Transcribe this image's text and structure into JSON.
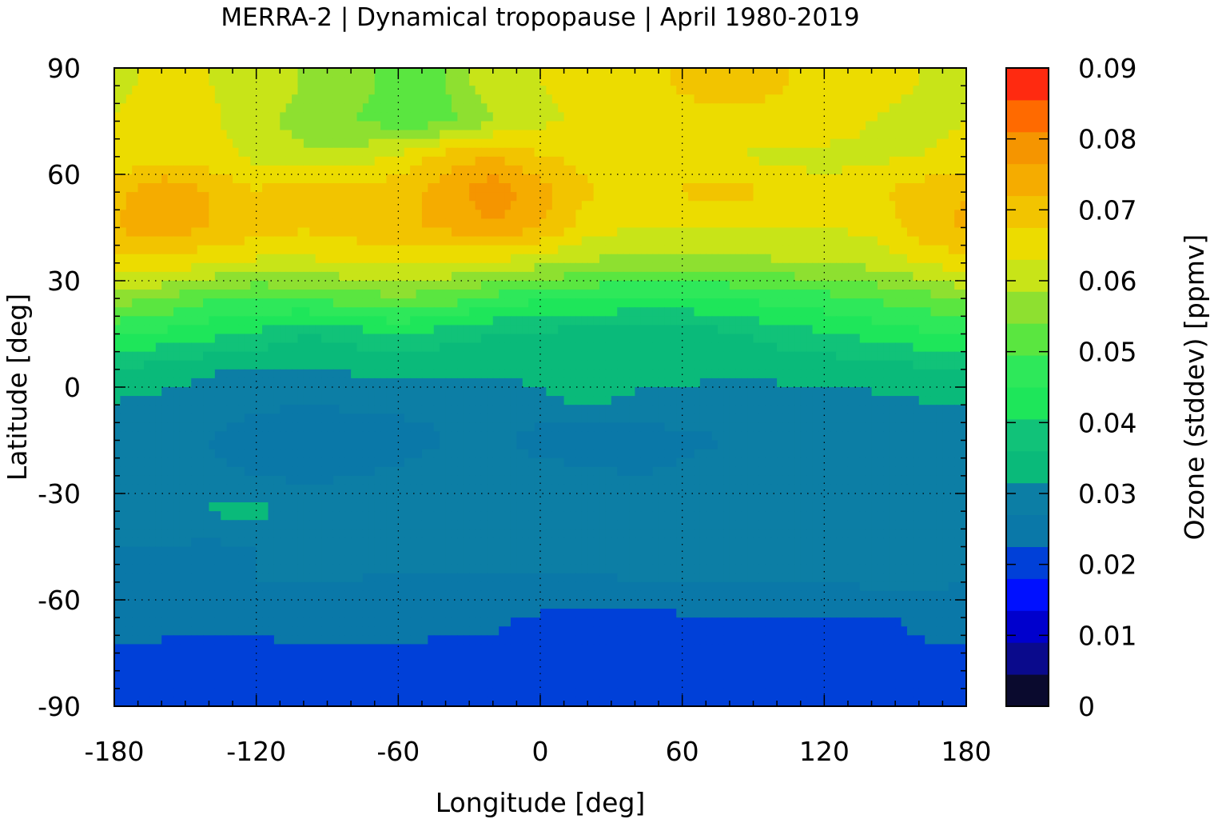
{
  "chart_data": {
    "type": "heatmap",
    "title": "MERRA-2 | Dynamical tropopause | April 1980-2019",
    "xlabel": "Longitude [deg]",
    "ylabel": "Latitude [deg]",
    "xlim": [
      -180,
      180
    ],
    "ylim": [
      -90,
      90
    ],
    "xticks": [
      "-180",
      "-120",
      "-60",
      "0",
      "60",
      "120",
      "180"
    ],
    "yticks": [
      "90",
      "60",
      "30",
      "0",
      "-30",
      "-60",
      "-90"
    ],
    "grid": "dotted",
    "colorbar": {
      "label": "Ozone (stddev) [ppmv]",
      "range": [
        0,
        0.09
      ],
      "step": 0.0045,
      "ticks": [
        "0.09",
        "0.08",
        "0.07",
        "0.06",
        "0.05",
        "0.04",
        "0.03",
        "0.02",
        "0.01",
        "0"
      ],
      "colors": [
        "#0a0a2e",
        "#0a0a8c",
        "#0000cd",
        "#0010ff",
        "#0040d8",
        "#0a78a8",
        "#0c7ea5",
        "#0aba7a",
        "#11c279",
        "#1ee65a",
        "#2ee85a",
        "#5ae640",
        "#8ee030",
        "#c8e418",
        "#ecdc00",
        "#f2c400",
        "#f5ac00",
        "#f59500",
        "#ff6a00",
        "#ff2a10",
        "#ee1b1b",
        "#ee3030",
        "#f57a7a",
        "#ffcccc"
      ]
    },
    "series": [
      {
        "lat": 85,
        "values": [
          0.062,
          0.064,
          0.063,
          0.062,
          0.058,
          0.055,
          0.053,
          0.054,
          0.062,
          0.063,
          0.064,
          0.066,
          0.068,
          0.07,
          0.068,
          0.066,
          0.064,
          0.063,
          0.062
        ]
      },
      {
        "lat": 75,
        "values": [
          0.063,
          0.065,
          0.064,
          0.06,
          0.056,
          0.054,
          0.052,
          0.052,
          0.058,
          0.062,
          0.064,
          0.067,
          0.066,
          0.065,
          0.066,
          0.065,
          0.063,
          0.062,
          0.063
        ]
      },
      {
        "lat": 65,
        "values": [
          0.064,
          0.066,
          0.065,
          0.062,
          0.06,
          0.06,
          0.064,
          0.07,
          0.072,
          0.068,
          0.066,
          0.066,
          0.064,
          0.063,
          0.062,
          0.062,
          0.062,
          0.063,
          0.064
        ]
      },
      {
        "lat": 55,
        "values": [
          0.07,
          0.076,
          0.072,
          0.068,
          0.07,
          0.071,
          0.07,
          0.074,
          0.08,
          0.074,
          0.068,
          0.066,
          0.068,
          0.07,
          0.066,
          0.064,
          0.066,
          0.07,
          0.072
        ]
      },
      {
        "lat": 45,
        "values": [
          0.072,
          0.075,
          0.072,
          0.07,
          0.068,
          0.07,
          0.071,
          0.073,
          0.076,
          0.072,
          0.065,
          0.063,
          0.063,
          0.063,
          0.063,
          0.063,
          0.064,
          0.07,
          0.073
        ]
      },
      {
        "lat": 35,
        "values": [
          0.066,
          0.066,
          0.064,
          0.062,
          0.062,
          0.063,
          0.064,
          0.063,
          0.062,
          0.06,
          0.058,
          0.056,
          0.056,
          0.057,
          0.058,
          0.058,
          0.06,
          0.063,
          0.066
        ]
      },
      {
        "lat": 25,
        "values": [
          0.056,
          0.054,
          0.05,
          0.049,
          0.05,
          0.052,
          0.053,
          0.052,
          0.048,
          0.046,
          0.045,
          0.044,
          0.044,
          0.045,
          0.047,
          0.048,
          0.05,
          0.052,
          0.055
        ]
      },
      {
        "lat": 15,
        "values": [
          0.046,
          0.044,
          0.042,
          0.04,
          0.036,
          0.038,
          0.041,
          0.038,
          0.036,
          0.035,
          0.034,
          0.034,
          0.034,
          0.035,
          0.038,
          0.04,
          0.042,
          0.044,
          0.046
        ]
      },
      {
        "lat": 5,
        "values": [
          0.036,
          0.034,
          0.032,
          0.031,
          0.031,
          0.032,
          0.033,
          0.032,
          0.032,
          0.033,
          0.035,
          0.034,
          0.033,
          0.032,
          0.033,
          0.033,
          0.034,
          0.035,
          0.036
        ]
      },
      {
        "lat": -5,
        "values": [
          0.031,
          0.03,
          0.029,
          0.028,
          0.027,
          0.028,
          0.028,
          0.028,
          0.029,
          0.03,
          0.032,
          0.03,
          0.03,
          0.029,
          0.029,
          0.029,
          0.03,
          0.031,
          0.031
        ]
      },
      {
        "lat": -15,
        "values": [
          0.029,
          0.028,
          0.027,
          0.024,
          0.022,
          0.022,
          0.025,
          0.027,
          0.028,
          0.025,
          0.024,
          0.024,
          0.026,
          0.027,
          0.028,
          0.029,
          0.029,
          0.029,
          0.029
        ]
      },
      {
        "lat": -25,
        "values": [
          0.028,
          0.028,
          0.028,
          0.027,
          0.026,
          0.027,
          0.028,
          0.029,
          0.03,
          0.029,
          0.028,
          0.027,
          0.028,
          0.029,
          0.029,
          0.03,
          0.03,
          0.029,
          0.028
        ]
      },
      {
        "lat": -35,
        "values": [
          0.03,
          0.031,
          0.032,
          0.033,
          0.03,
          0.029,
          0.029,
          0.03,
          0.031,
          0.031,
          0.03,
          0.03,
          0.031,
          0.031,
          0.03,
          0.029,
          0.03,
          0.031,
          0.03
        ]
      },
      {
        "lat": -45,
        "values": [
          0.027,
          0.027,
          0.026,
          0.027,
          0.028,
          0.029,
          0.029,
          0.029,
          0.03,
          0.03,
          0.03,
          0.03,
          0.031,
          0.031,
          0.03,
          0.03,
          0.03,
          0.029,
          0.027
        ]
      },
      {
        "lat": -55,
        "values": [
          0.027,
          0.026,
          0.027,
          0.027,
          0.027,
          0.027,
          0.026,
          0.026,
          0.026,
          0.026,
          0.026,
          0.027,
          0.027,
          0.027,
          0.027,
          0.027,
          0.028,
          0.028,
          0.027
        ]
      },
      {
        "lat": -65,
        "values": [
          0.026,
          0.025,
          0.024,
          0.024,
          0.025,
          0.025,
          0.024,
          0.023,
          0.023,
          0.022,
          0.021,
          0.021,
          0.022,
          0.022,
          0.022,
          0.022,
          0.022,
          0.023,
          0.025
        ]
      },
      {
        "lat": -75,
        "values": [
          0.022,
          0.021,
          0.021,
          0.021,
          0.022,
          0.022,
          0.022,
          0.022,
          0.022,
          0.021,
          0.021,
          0.021,
          0.021,
          0.022,
          0.021,
          0.021,
          0.022,
          0.022,
          0.022
        ]
      },
      {
        "lat": -85,
        "values": [
          0.021,
          0.021,
          0.021,
          0.021,
          0.021,
          0.021,
          0.021,
          0.021,
          0.021,
          0.021,
          0.021,
          0.021,
          0.021,
          0.021,
          0.021,
          0.021,
          0.021,
          0.021,
          0.021
        ]
      }
    ],
    "lon": [
      -180,
      -160,
      -140,
      -120,
      -100,
      -80,
      -60,
      -40,
      -20,
      0,
      20,
      40,
      60,
      80,
      100,
      120,
      140,
      160,
      180
    ]
  }
}
